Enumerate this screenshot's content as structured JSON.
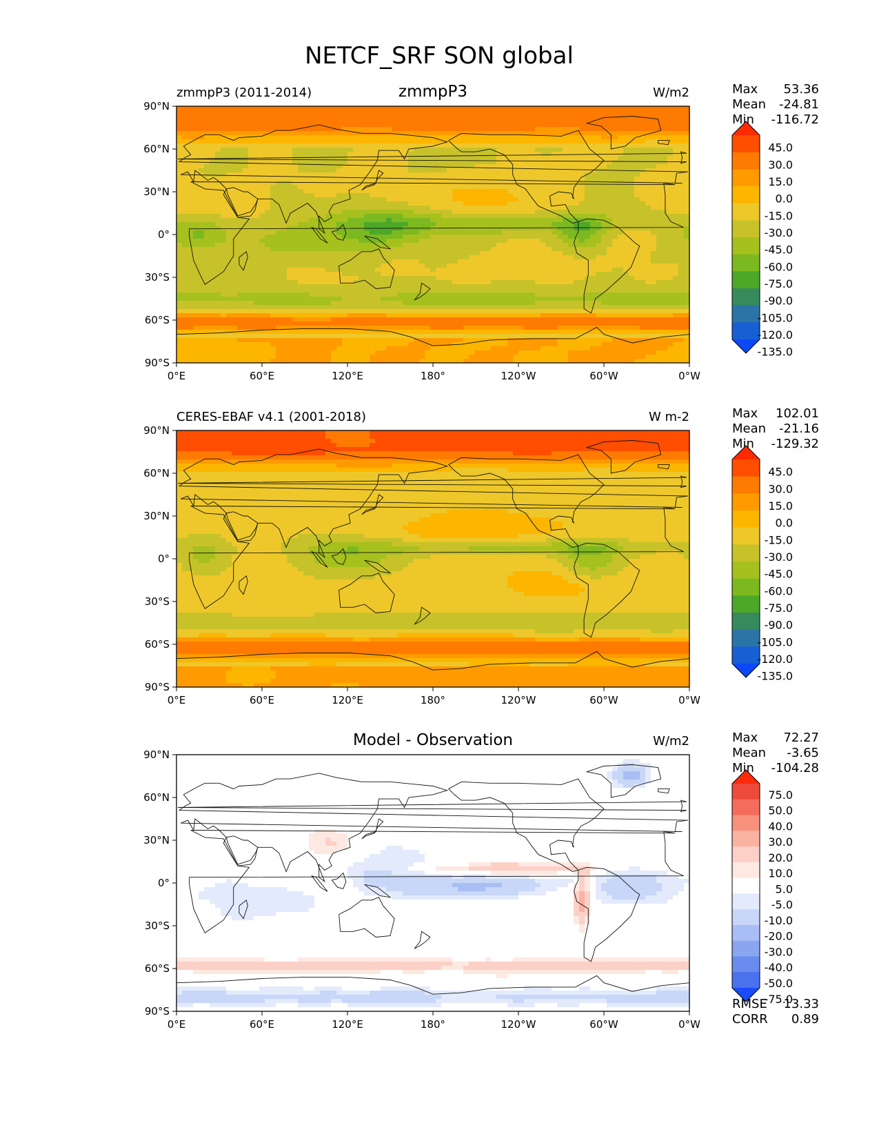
{
  "chart_data": [
    {
      "type": "heatmap",
      "title": "NETCF_SRF SON global",
      "left_title": "zmmpP3 (2011-2014)",
      "center_title": "zmmpP3",
      "units": "W/m2",
      "stats": {
        "Max": "53.36",
        "Mean": "-24.81",
        "Min": "-116.72"
      },
      "x_ticks": [
        "0°E",
        "60°E",
        "120°E",
        "180°",
        "120°W",
        "60°W",
        "0°W"
      ],
      "y_ticks": [
        "90°N",
        "60°N",
        "30°N",
        "0°",
        "30°S",
        "60°S",
        "90°S"
      ],
      "xlim": [
        0,
        360
      ],
      "ylim": [
        -90,
        90
      ],
      "colorbar": {
        "labels": [
          "45.0",
          "30.0",
          "15.0",
          "0.0",
          "-15.0",
          "-30.0",
          "-45.0",
          "-60.0",
          "-75.0",
          "-90.0",
          "-105.0",
          "-120.0",
          "-135.0"
        ],
        "colors": [
          "#ff2a00",
          "#ff4e00",
          "#ff7a00",
          "#ff9a00",
          "#fcb600",
          "#eec82a",
          "#c8c22a",
          "#a6c01e",
          "#7cb820",
          "#4ea828",
          "#368a5c",
          "#2a74a6",
          "#1660d4",
          "#0a48f8"
        ],
        "extend": "both"
      },
      "field": {
        "kind": "model"
      }
    },
    {
      "type": "heatmap",
      "left_title": "CERES-EBAF v4.1 (2001-2018)",
      "center_title": "",
      "units": "W m-2",
      "stats": {
        "Max": "102.01",
        "Mean": "-21.16",
        "Min": "-129.32"
      },
      "x_ticks": [
        "0°E",
        "60°E",
        "120°E",
        "180°",
        "120°W",
        "60°W",
        "0°W"
      ],
      "y_ticks": [
        "90°N",
        "60°N",
        "30°N",
        "0°",
        "30°S",
        "60°S",
        "90°S"
      ],
      "xlim": [
        0,
        360
      ],
      "ylim": [
        -90,
        90
      ],
      "colorbar": {
        "labels": [
          "45.0",
          "30.0",
          "15.0",
          "0.0",
          "-15.0",
          "-30.0",
          "-45.0",
          "-60.0",
          "-75.0",
          "-90.0",
          "-105.0",
          "-120.0",
          "-135.0"
        ],
        "colors": [
          "#ff2a00",
          "#ff4e00",
          "#ff7a00",
          "#ff9a00",
          "#fcb600",
          "#eec82a",
          "#c8c22a",
          "#a6c01e",
          "#7cb820",
          "#4ea828",
          "#368a5c",
          "#2a74a6",
          "#1660d4",
          "#0a48f8"
        ],
        "extend": "both"
      },
      "field": {
        "kind": "obs"
      }
    },
    {
      "type": "heatmap",
      "left_title": "",
      "center_title": "Model - Observation",
      "units": "W/m2",
      "stats": {
        "Max": "72.27",
        "Mean": "-3.65",
        "Min": "-104.28"
      },
      "x_ticks": [
        "0°E",
        "60°E",
        "120°E",
        "180°",
        "120°W",
        "60°W",
        "0°W"
      ],
      "y_ticks": [
        "90°N",
        "60°N",
        "30°N",
        "0°",
        "30°S",
        "60°S",
        "90°S"
      ],
      "xlim": [
        0,
        360
      ],
      "ylim": [
        -90,
        90
      ],
      "colorbar": {
        "labels": [
          "75.0",
          "50.0",
          "40.0",
          "30.0",
          "20.0",
          "10.0",
          "5.0",
          "-5.0",
          "-10.0",
          "-20.0",
          "-30.0",
          "-40.0",
          "-50.0",
          "-75.0"
        ],
        "colors": [
          "#ff2a0a",
          "#ee4a3c",
          "#f46c5c",
          "#f8907e",
          "#fab2a2",
          "#fcd0c6",
          "#fde8e2",
          "#ffffff",
          "#e2eafc",
          "#c8d6f8",
          "#a8bef4",
          "#8aa6f0",
          "#6a8cee",
          "#4a72ee",
          "#1a4cf8"
        ],
        "extend": "both"
      },
      "metrics": {
        "RMSE": "13.33",
        "CORR": "0.89"
      },
      "field": {
        "kind": "diff"
      }
    }
  ]
}
